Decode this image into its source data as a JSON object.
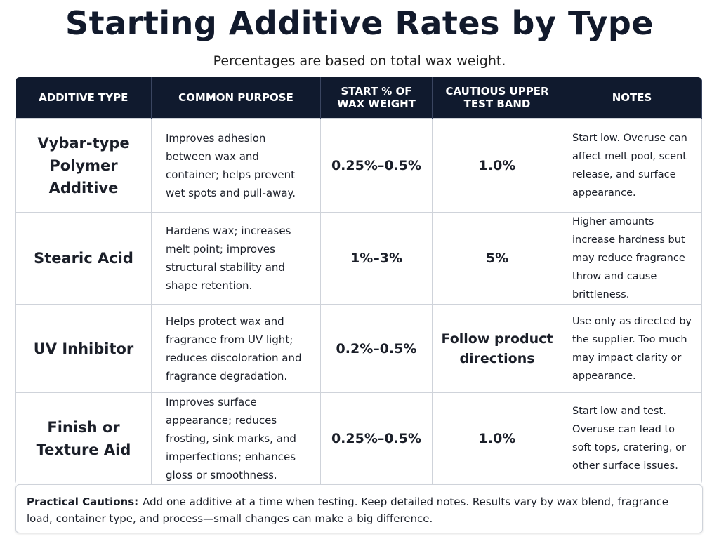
{
  "header": {
    "title": "Starting Additive Rates by Type",
    "subtitle": "Percentages are based on total wax weight."
  },
  "table": {
    "headers": [
      "ADDITIVE TYPE",
      "COMMON PURPOSE",
      "START % OF WAX WEIGHT",
      "CAUTIOUS UPPER TEST BAND",
      "NOTES"
    ],
    "rows": [
      [
        "Vybar-type Polymer Additive",
        "Improves adhesion between wax and container; helps prevent wet spots and pull-away.",
        "0.25%–0.5%",
        "1.0%",
        "Start low. Overuse can affect melt pool, scent release, and surface appearance."
      ],
      [
        "Stearic Acid",
        "Hardens wax; increases melt point; improves structural stability and shape retention.",
        "1%–3%",
        "5%",
        "Higher amounts increase hardness but may reduce fragrance throw and cause brittleness."
      ],
      [
        "UV Inhibitor",
        "Helps protect wax and fragrance from UV light; reduces discoloration and fragrance degradation.",
        "0.2%–0.5%",
        "Follow product directions",
        "Use only as directed by the supplier. Too much may impact clarity or appearance."
      ],
      [
        "Finish or Texture Aid",
        "Improves surface appearance; reduces frosting, sink marks, and imperfections; enhances gloss or smoothness.",
        "0.25%–0.5%",
        "1.0%",
        "Start low and test. Overuse can lead to soft tops, cratering, or other surface issues."
      ]
    ]
  },
  "cautions": {
    "label": "Practical Cautions:",
    "text": "Add one additive at a time when testing. Keep detailed notes. Results vary by wax blend, fragrance load, container type, and process—small changes can make a big difference."
  }
}
